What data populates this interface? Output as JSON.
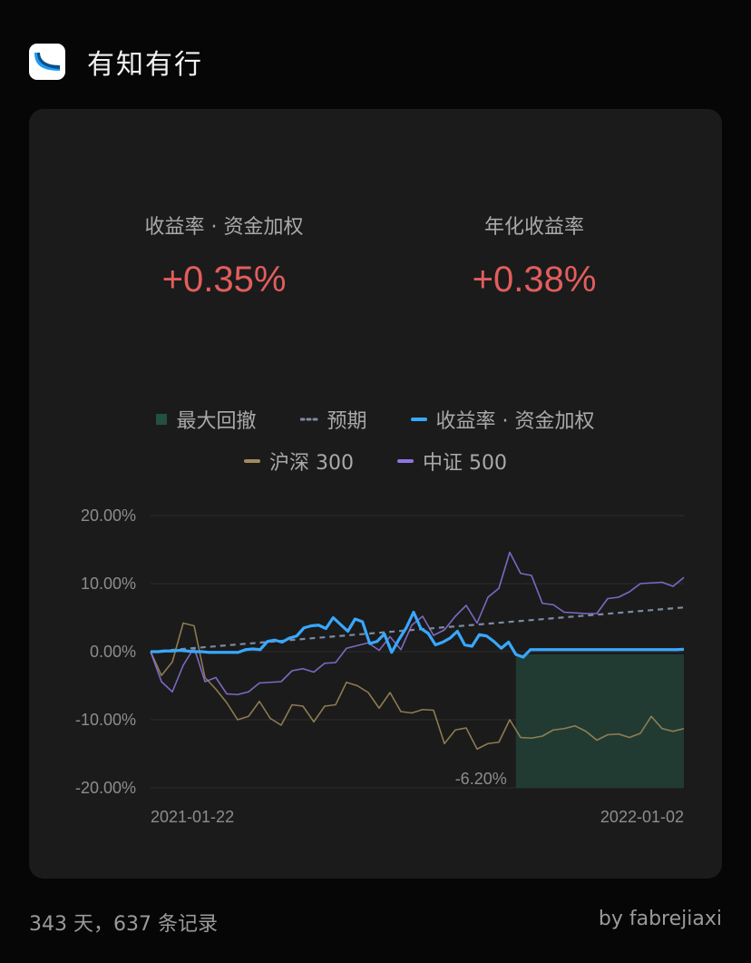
{
  "app": {
    "title": "有知有行"
  },
  "stats": [
    {
      "label": "收益率 · 资金加权",
      "value": "+0.35%"
    },
    {
      "label": "年化收益率",
      "value": "+0.38%"
    }
  ],
  "legend": [
    {
      "label": "最大回撤",
      "color": "#24503f",
      "shape": "square"
    },
    {
      "label": "预期",
      "color": "#7d8aa3",
      "shape": "dots"
    },
    {
      "label": "收益率 · 资金加权",
      "color": "#38a8ff",
      "shape": "line"
    },
    {
      "label": "沪深 300",
      "color": "#a08c5c",
      "shape": "line"
    },
    {
      "label": "中证 500",
      "color": "#8e76e0",
      "shape": "line"
    }
  ],
  "chart_data": {
    "type": "line",
    "y_ticks": [
      "20.00%",
      "10.00%",
      "0.00%",
      "-10.00%",
      "-20.00%"
    ],
    "ylim": [
      -20,
      20
    ],
    "x_labels": [
      "2021-01-22",
      "2022-01-02"
    ],
    "drawdown_label": "-6.20%",
    "drawdown": {
      "start_index": 50,
      "end_index": 73,
      "value": -6.2
    },
    "expected": [
      0,
      6.5
    ],
    "series": [
      {
        "name": "收益率 · 资金加权",
        "color": "#38a8ff",
        "values": [
          0,
          0,
          0.1,
          0.1,
          0.2,
          0.1,
          0,
          0,
          -0.1,
          -0.1,
          -0.1,
          -0.1,
          -0.1,
          0.3,
          0.4,
          0.3,
          1.5,
          1.7,
          1.4,
          2,
          2.3,
          3.5,
          3.8,
          3.9,
          3.4,
          5,
          4,
          3,
          4.8,
          4.4,
          1.2,
          1.5,
          2.6,
          -0.1,
          1.8,
          3.5,
          5.8,
          3.4,
          2.7,
          1,
          1.4,
          2,
          3,
          1,
          0.8,
          2.5,
          2.3,
          1.5,
          0.5,
          1.4,
          -0.4,
          -0.8,
          0.3,
          0.3,
          0.3,
          0.3,
          0.3,
          0.3,
          0.3,
          0.3,
          0.3,
          0.3,
          0.3,
          0.3,
          0.3,
          0.3,
          0.3,
          0.3,
          0.3,
          0.3,
          0.3,
          0.3,
          0.3,
          0.35
        ]
      },
      {
        "name": "沪深 300",
        "color": "#a08c5c",
        "values": [
          0,
          -3.5,
          -1.5,
          4.2,
          3.8,
          -3.8,
          -5.5,
          -7.5,
          -10,
          -9.5,
          -7.3,
          -9.8,
          -10.8,
          -7.8,
          -8,
          -10.3,
          -8,
          -7.8,
          -4.5,
          -5,
          -6,
          -8.3,
          -6,
          -8.8,
          -9,
          -8.5,
          -8.6,
          -13.5,
          -11.5,
          -11.2,
          -14.3,
          -13.5,
          -13.3,
          -10,
          -12.6,
          -12.7,
          -12.4,
          -11.5,
          -11.3,
          -10.9,
          -11.7,
          -13,
          -12.2,
          -12.1,
          -12.6,
          -12,
          -9.5,
          -11.3,
          -11.7,
          -11.3
        ]
      },
      {
        "name": "中证 500",
        "color": "#8e76e0",
        "values": [
          0,
          -4.4,
          -5.9,
          -2,
          0.6,
          -4.4,
          -3.8,
          -6.2,
          -6.3,
          -5.9,
          -4.6,
          -4.5,
          -4.4,
          -2.8,
          -2.5,
          -3,
          -1.7,
          -1.6,
          0.5,
          0.9,
          1.3,
          0.2,
          2.2,
          0.3,
          3.9,
          5.2,
          2.4,
          3.2,
          5.2,
          6.8,
          4.2,
          8,
          9.3,
          14.6,
          11.5,
          11.2,
          7.1,
          6.9,
          5.8,
          5.7,
          5.6,
          5.6,
          7.8,
          8,
          8.8,
          10,
          10.1,
          10.2,
          9.6,
          10.9
        ]
      }
    ]
  },
  "footer": {
    "summary": "343 天，637 条记录",
    "credit": "by fabrejiaxi"
  }
}
